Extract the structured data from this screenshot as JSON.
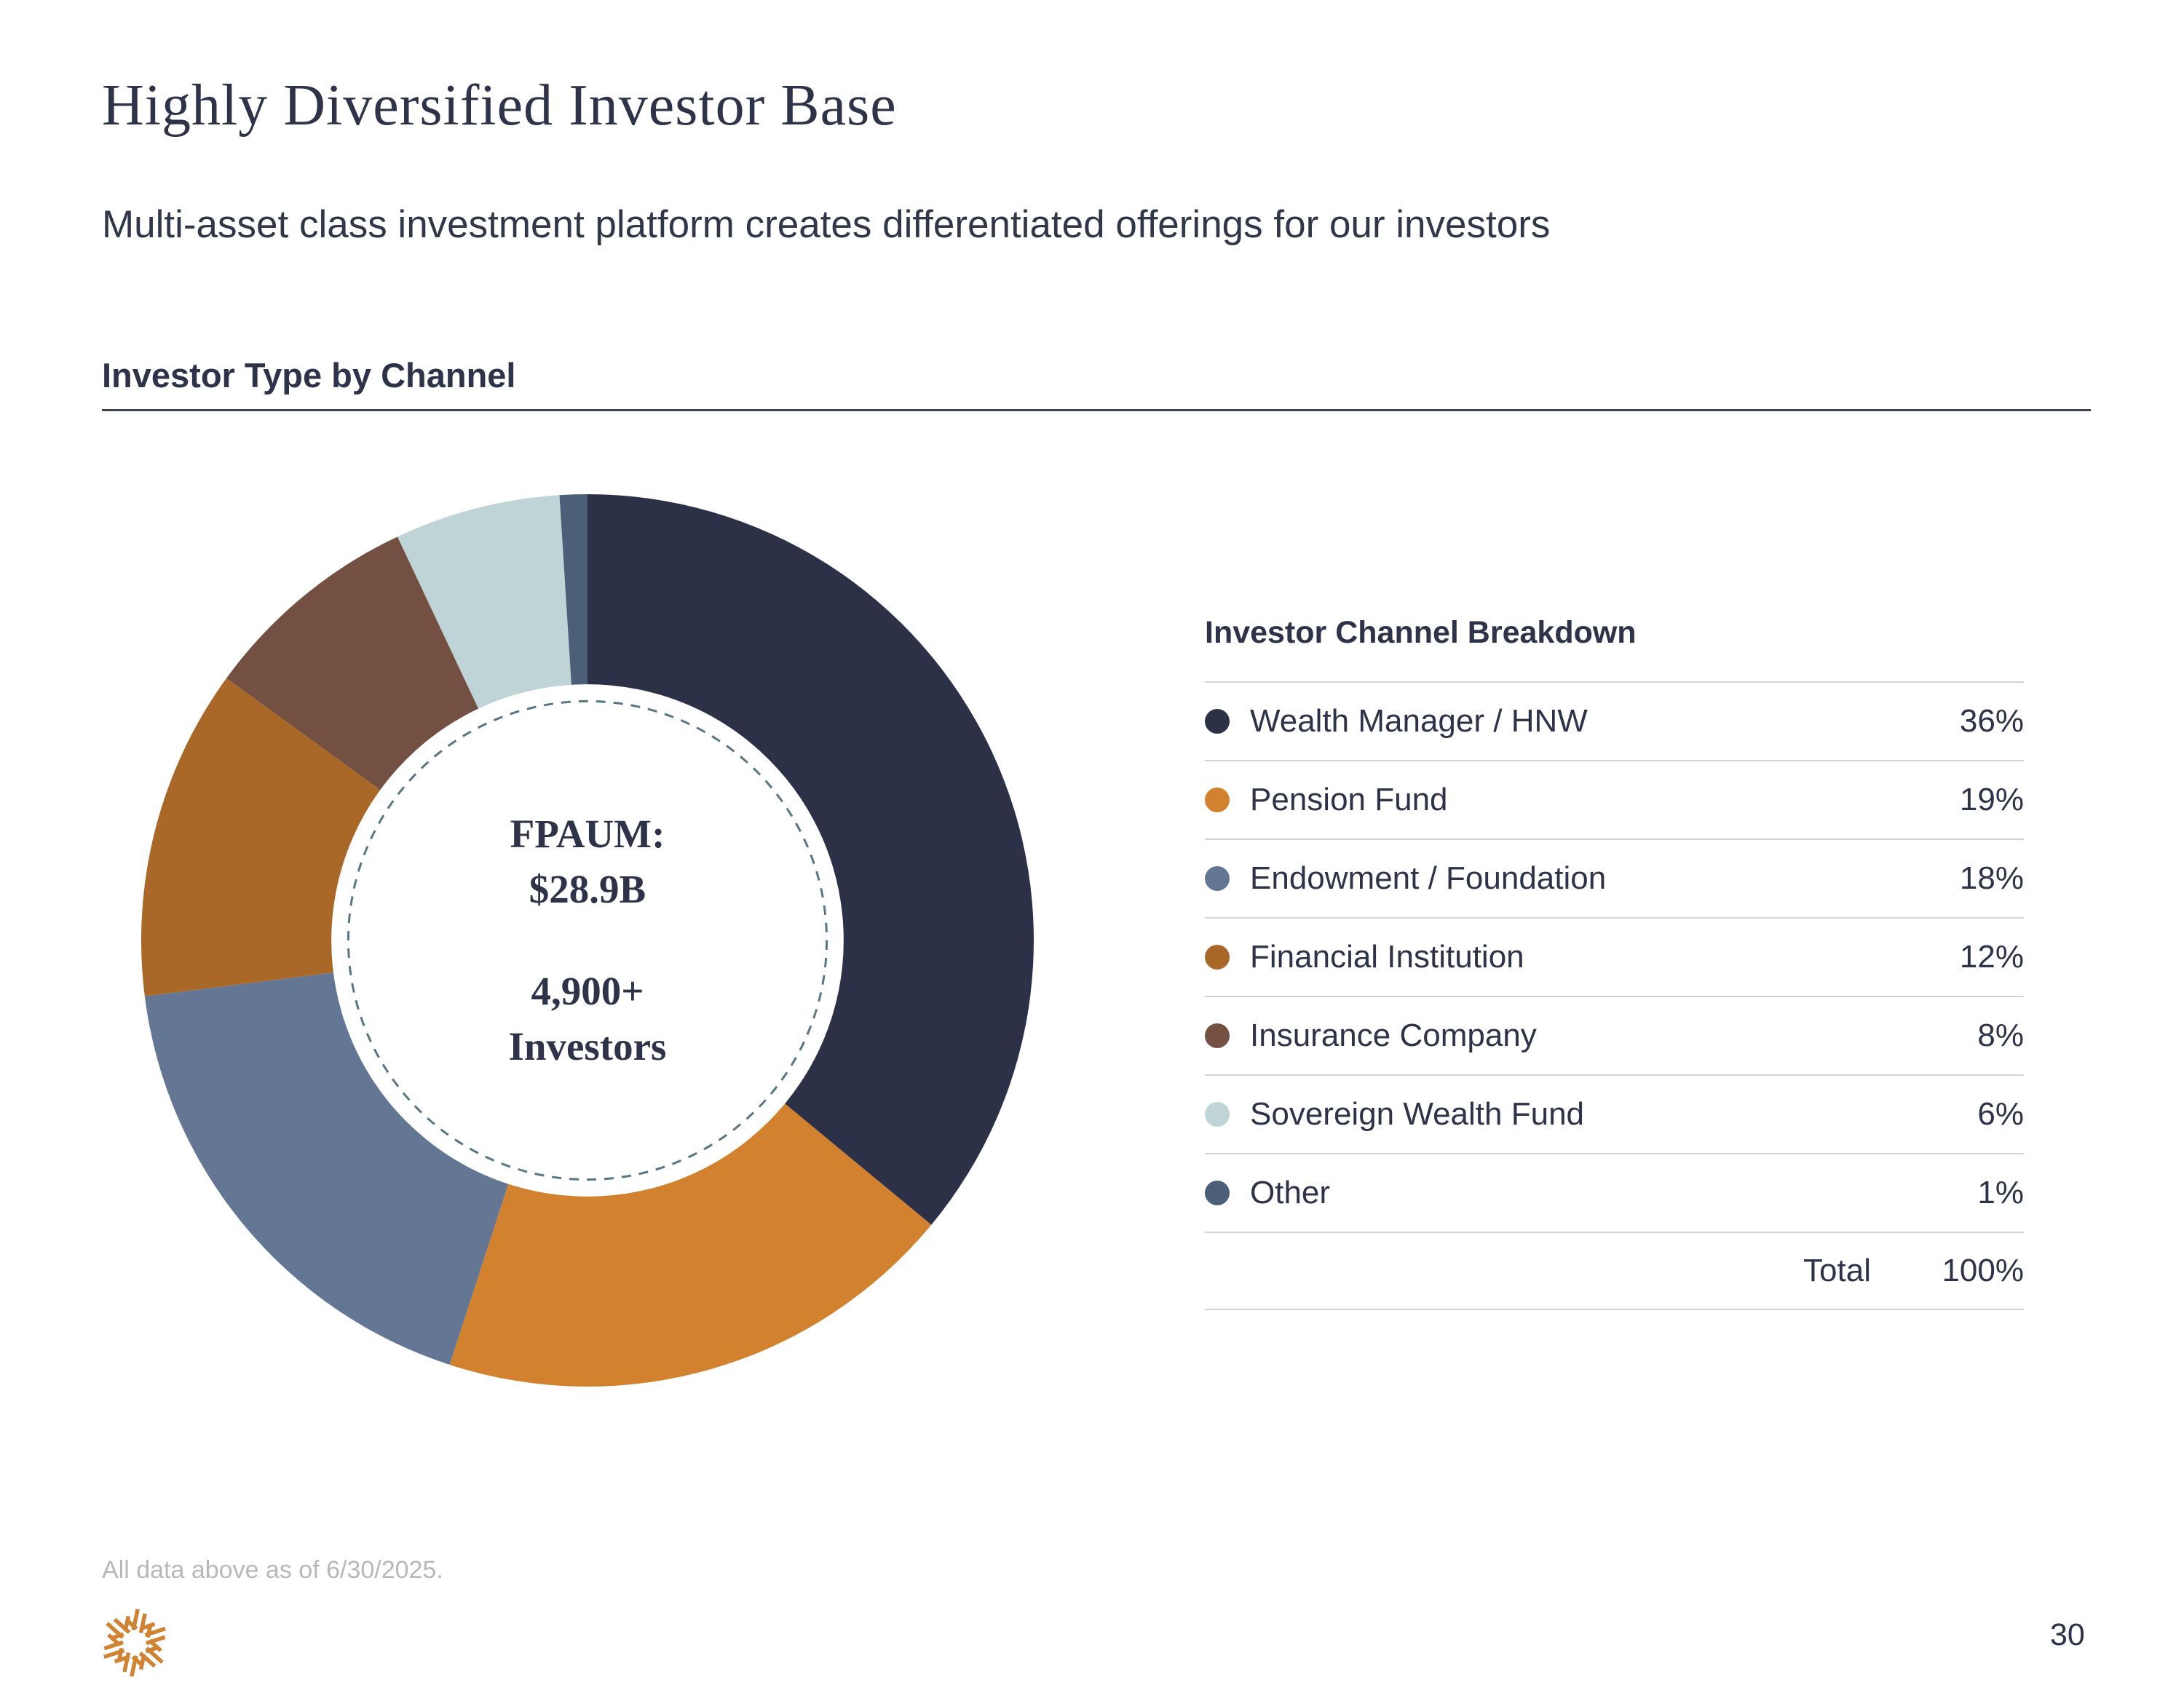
{
  "slide": {
    "title": "Highly Diversified Investor Base",
    "subtitle": "Multi-asset class investment platform creates differentiated offerings for our investors",
    "section_title": "Investor Type by Channel",
    "footnote": "All data above as of 6/30/2025.",
    "page_number": "30"
  },
  "legend": {
    "title": "Investor Channel Breakdown",
    "total_label": "Total",
    "total_value": "100%"
  },
  "chart_data": {
    "type": "pie",
    "subtype": "donut",
    "title": "Investor Type by Channel",
    "categories": [
      "Wealth Manager / HNW",
      "Pension Fund",
      "Endowment / Foundation",
      "Financial Institution",
      "Insurance Company",
      "Sovereign Wealth Fund",
      "Other"
    ],
    "values": [
      36,
      19,
      18,
      12,
      8,
      6,
      1
    ],
    "value_labels": [
      "36%",
      "19%",
      "18%",
      "12%",
      "8%",
      "6%",
      "1%"
    ],
    "colors": [
      "#2D3147",
      "#D2812E",
      "#637795",
      "#A96827",
      "#745043",
      "#BFD4D7",
      "#4C5F78"
    ],
    "total": 100,
    "total_label": "Total",
    "total_value_label": "100%",
    "start_angle_deg": 0,
    "direction": "clockwise",
    "hole_ratio": 0.574,
    "inner_dashed_ring_ratio": 0.536,
    "dashed_ring_color": "#567684",
    "legend_position": "right",
    "center_text": [
      "FPAUM:",
      "$28.9B",
      "4,900+",
      "Investors"
    ]
  },
  "style_colors": {
    "text_navy": "#2E3349",
    "rule_dark": "#3E4354",
    "divider_gray": "#D5D5D5",
    "footnote_gray": "#B8B8B8",
    "logo_orange": "#D08433",
    "background": "#FFFFFF"
  }
}
